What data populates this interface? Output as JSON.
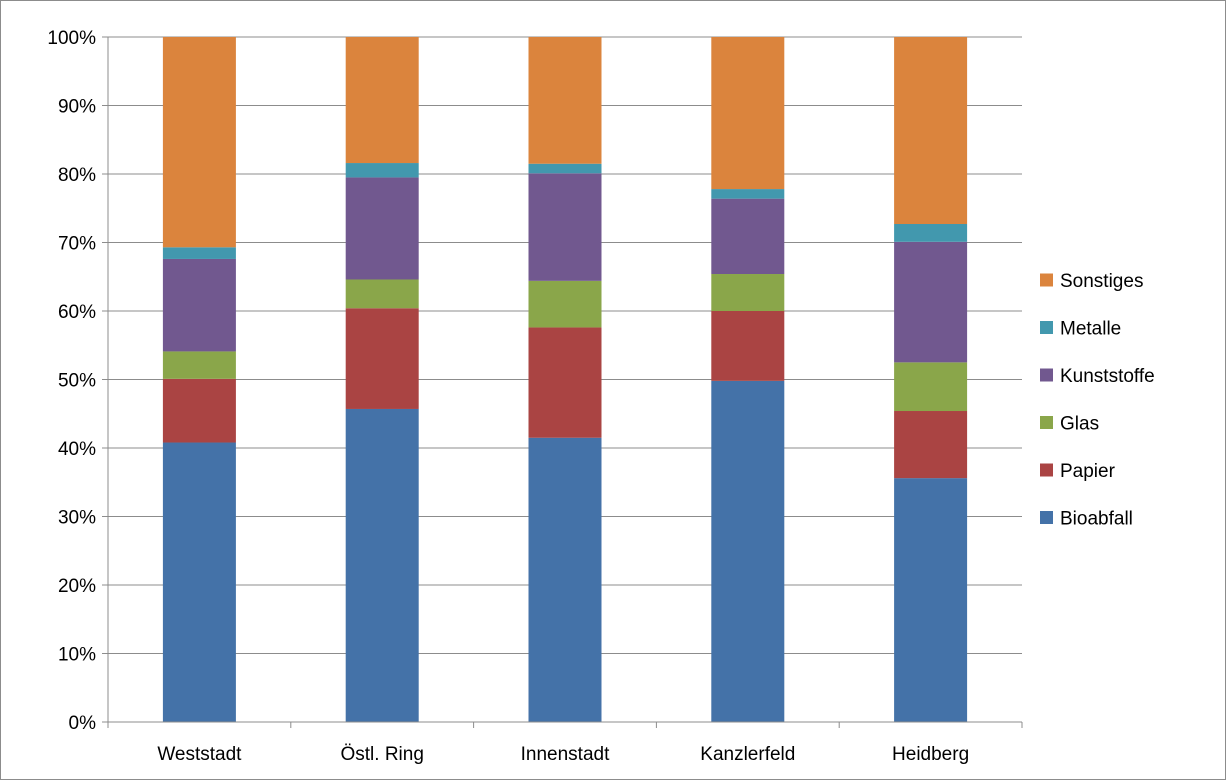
{
  "chart_data": {
    "type": "bar",
    "stacked": true,
    "percent": true,
    "categories": [
      "Weststadt",
      "Östl. Ring",
      "Innenstadt",
      "Kanzlerfeld",
      "Heidberg"
    ],
    "series": [
      {
        "name": "Bioabfall",
        "color": "#4472a8",
        "values": [
          40.8,
          45.7,
          41.5,
          49.8,
          35.6
        ]
      },
      {
        "name": "Papier",
        "color": "#aa4443",
        "values": [
          9.3,
          14.7,
          16.1,
          10.2,
          9.8
        ]
      },
      {
        "name": "Glas",
        "color": "#8aa64a",
        "values": [
          4.0,
          4.2,
          6.8,
          5.4,
          7.1
        ]
      },
      {
        "name": "Kunststoffe",
        "color": "#71588f",
        "values": [
          13.5,
          14.9,
          15.7,
          11.0,
          17.6
        ]
      },
      {
        "name": "Metalle",
        "color": "#4298ae",
        "values": [
          1.7,
          2.1,
          1.4,
          1.4,
          2.6
        ]
      },
      {
        "name": "Sonstiges",
        "color": "#db843d",
        "values": [
          30.7,
          18.4,
          18.5,
          22.2,
          27.3
        ]
      }
    ],
    "y_ticks": [
      "0%",
      "10%",
      "20%",
      "30%",
      "40%",
      "50%",
      "60%",
      "70%",
      "80%",
      "90%",
      "100%"
    ],
    "ylim": [
      0,
      100
    ],
    "grid": true,
    "legend_position": "right",
    "title": "",
    "xlabel": "",
    "ylabel": ""
  }
}
